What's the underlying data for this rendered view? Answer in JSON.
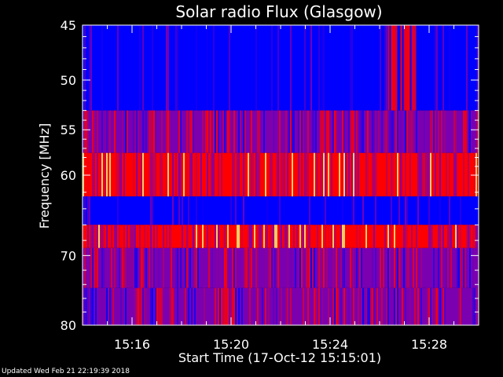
{
  "chart_data": {
    "type": "heatmap",
    "title": "Solar radio Flux (Glasgow)",
    "xlabel": "Start Time (17-Oct-12 15:15:01)",
    "ylabel": "Frequency [MHz]",
    "x_unit": "minutes",
    "x_start": "15:15:01",
    "xlim": [
      "15:14",
      "15:30"
    ],
    "ylim": [
      45,
      80
    ],
    "y_direction": "inverted",
    "y_scale": "log",
    "x_ticks": [
      "15:16",
      "15:20",
      "15:24",
      "15:28"
    ],
    "y_ticks": [
      45,
      50,
      55,
      60,
      70,
      80
    ],
    "colors": {
      "background": "#000000",
      "low": "#0000ff",
      "mid": "#7a00b0",
      "high": "#ff0000",
      "peak": "#ffcc66"
    },
    "bands": [
      {
        "from_mhz": 45,
        "to_mhz": 53,
        "level": "low"
      },
      {
        "from_mhz": 53,
        "to_mhz": 57.5,
        "level": "mid"
      },
      {
        "from_mhz": 57.5,
        "to_mhz": 62.5,
        "level": "high"
      },
      {
        "from_mhz": 62.5,
        "to_mhz": 66,
        "level": "low"
      },
      {
        "from_mhz": 66,
        "to_mhz": 69,
        "level": "high"
      },
      {
        "from_mhz": 69,
        "to_mhz": 74.5,
        "level": "mid"
      },
      {
        "from_mhz": 74.5,
        "to_mhz": 80,
        "level": "mid"
      }
    ],
    "bursts": [
      {
        "x_range": [
          "15:26:20",
          "15:27:30"
        ],
        "y_range_mhz": [
          45,
          53
        ],
        "level": "high"
      }
    ]
  },
  "footer": {
    "text": "Updated Wed Feb 21 22:19:39 2018"
  }
}
